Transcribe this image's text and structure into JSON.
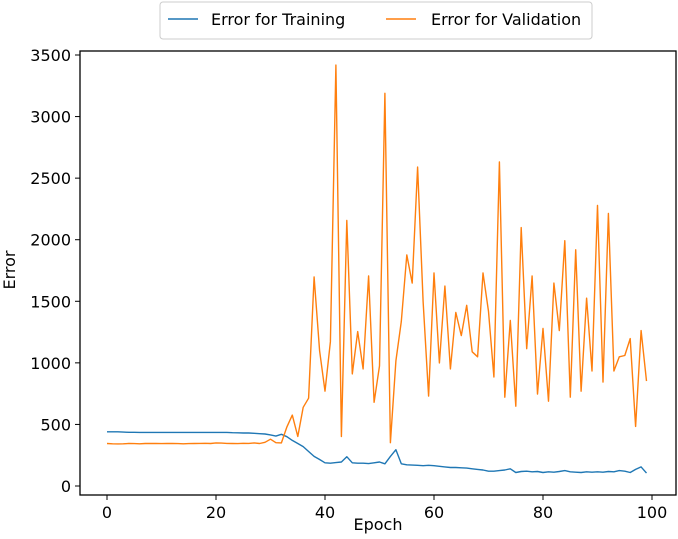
{
  "chart_data": {
    "type": "line",
    "title": "",
    "xlabel": "Epoch",
    "ylabel": "Error",
    "xlim": [
      -5,
      105
    ],
    "ylim": [
      -80,
      3560
    ],
    "xticks": [
      0,
      20,
      40,
      60,
      80,
      100
    ],
    "yticks": [
      0,
      500,
      1000,
      1500,
      2000,
      2500,
      3000,
      3500
    ],
    "legend_position": "top-center",
    "grid": false,
    "series": [
      {
        "name": "Error for Training",
        "color": "#1f77b4",
        "values": [
          440,
          440,
          440,
          438,
          436,
          436,
          435,
          435,
          435,
          435,
          435,
          435,
          435,
          435,
          435,
          435,
          435,
          435,
          435,
          435,
          435,
          435,
          435,
          433,
          432,
          430,
          430,
          428,
          425,
          422,
          415,
          405,
          420,
          400,
          370,
          345,
          320,
          280,
          240,
          215,
          188,
          185,
          190,
          195,
          238,
          188,
          185,
          185,
          182,
          188,
          195,
          180,
          240,
          295,
          180,
          172,
          170,
          168,
          165,
          168,
          165,
          160,
          155,
          150,
          150,
          148,
          145,
          140,
          135,
          130,
          120,
          120,
          125,
          130,
          140,
          110,
          118,
          120,
          115,
          118,
          110,
          115,
          112,
          118,
          125,
          115,
          112,
          110,
          115,
          112,
          115,
          112,
          118,
          115,
          125,
          120,
          110,
          135,
          155,
          105
        ]
      },
      {
        "name": "Error for Validation",
        "color": "#ff7f0e",
        "values": [
          345,
          343,
          342,
          343,
          345,
          344,
          343,
          345,
          346,
          345,
          344,
          345,
          346,
          344,
          343,
          344,
          345,
          346,
          347,
          345,
          350,
          348,
          346,
          345,
          344,
          347,
          346,
          350,
          345,
          355,
          380,
          352,
          350,
          480,
          576,
          402,
          639,
          713,
          1697,
          1098,
          770,
          1172,
          3418,
          402,
          2156,
          910,
          1254,
          951,
          1705,
          680,
          975,
          3189,
          352,
          1016,
          1336,
          1877,
          1648,
          2590,
          1500,
          730,
          1730,
          1000,
          1623,
          951,
          1410,
          1221,
          1467,
          1090,
          1049,
          1730,
          1418,
          885,
          2631,
          721,
          1344,
          648,
          2098,
          1115,
          1705,
          746,
          1279,
          689,
          1648,
          1262,
          1992,
          721,
          1918,
          770,
          1525,
          934,
          2279,
          844,
          2213,
          934,
          1049,
          1060,
          1197,
          484,
          1262,
          852
        ]
      }
    ]
  }
}
